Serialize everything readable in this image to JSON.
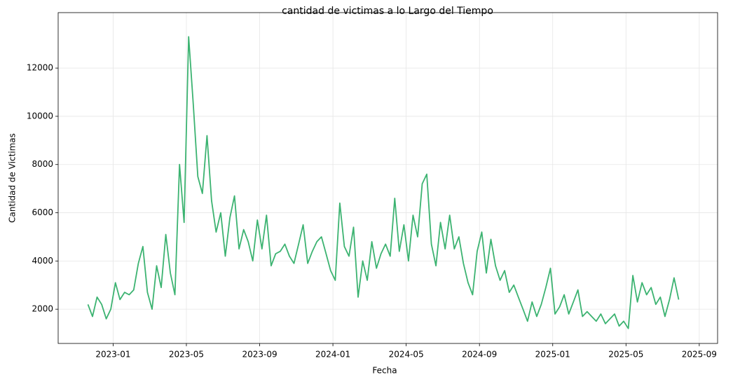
{
  "chart_data": {
    "type": "line",
    "title": "cantidad de victimas a lo Largo del Tiempo",
    "x_label": "Fecha",
    "y_label": "Cantidad de Victimas",
    "x": [
      "2022-11",
      "2022-11",
      "2022-11",
      "2022-11",
      "2022-12",
      "2022-12",
      "2022-12",
      "2022-12",
      "2023-01",
      "2023-01",
      "2023-01",
      "2023-01",
      "2023-02",
      "2023-02",
      "2023-02",
      "2023-02",
      "2023-03",
      "2023-03",
      "2023-03",
      "2023-03",
      "2023-04",
      "2023-04",
      "2023-04",
      "2023-04",
      "2023-05",
      "2023-05",
      "2023-05",
      "2023-05",
      "2023-06",
      "2023-06",
      "2023-06",
      "2023-06",
      "2023-07",
      "2023-07",
      "2023-07",
      "2023-07",
      "2023-08",
      "2023-08",
      "2023-08",
      "2023-08",
      "2023-09",
      "2023-09",
      "2023-09",
      "2023-09",
      "2023-10",
      "2023-10",
      "2023-10",
      "2023-10",
      "2023-11",
      "2023-11",
      "2023-11",
      "2023-11",
      "2023-12",
      "2023-12",
      "2023-12",
      "2023-12",
      "2024-01",
      "2024-01",
      "2024-01",
      "2024-01",
      "2024-02",
      "2024-02",
      "2024-02",
      "2024-02",
      "2024-03",
      "2024-03",
      "2024-03",
      "2024-03",
      "2024-04",
      "2024-04",
      "2024-04",
      "2024-04",
      "2024-05",
      "2024-05",
      "2024-05",
      "2024-05",
      "2024-06",
      "2024-06",
      "2024-06",
      "2024-06",
      "2024-07",
      "2024-07",
      "2024-07",
      "2024-07",
      "2024-08",
      "2024-08",
      "2024-08",
      "2024-08",
      "2024-09",
      "2024-09",
      "2024-09",
      "2024-09",
      "2024-10",
      "2024-10",
      "2024-10",
      "2024-10",
      "2024-11",
      "2024-11",
      "2024-11",
      "2024-11",
      "2024-12",
      "2024-12",
      "2024-12",
      "2024-12",
      "2025-01",
      "2025-01",
      "2025-01",
      "2025-01",
      "2025-02",
      "2025-02",
      "2025-02",
      "2025-02",
      "2025-03",
      "2025-03",
      "2025-03",
      "2025-03",
      "2025-04",
      "2025-04",
      "2025-04",
      "2025-04",
      "2025-05",
      "2025-05",
      "2025-05",
      "2025-05",
      "2025-06",
      "2025-06",
      "2025-06",
      "2025-06",
      "2025-07",
      "2025-07",
      "2025-07",
      "2025-07"
    ],
    "series": [
      {
        "name": "Cantidad de Victimas",
        "color": "#3cb371",
        "values": [
          null,
          null,
          2200,
          1700,
          2500,
          2200,
          1600,
          2000,
          3100,
          2400,
          2700,
          2600,
          2800,
          3900,
          4600,
          2700,
          2000,
          3800,
          2900,
          5100,
          3500,
          2600,
          8000,
          5600,
          13300,
          10500,
          7500,
          6800,
          9200,
          6500,
          5200,
          6000,
          4200,
          5800,
          6700,
          4500,
          5300,
          4800,
          4000,
          5700,
          4500,
          5900,
          3800,
          4300,
          4400,
          4700,
          4200,
          3900,
          4700,
          5500,
          3900,
          4400,
          4800,
          5000,
          4300,
          3600,
          3200,
          6400,
          4600,
          4200,
          5400,
          2500,
          4000,
          3200,
          4800,
          3700,
          4300,
          4700,
          4200,
          6600,
          4400,
          5500,
          4000,
          5900,
          5000,
          7200,
          7600,
          4700,
          3800,
          5600,
          4500,
          5900,
          4500,
          5000,
          3900,
          3100,
          2600,
          4400,
          5200,
          3500,
          4900,
          3800,
          3200,
          3600,
          2700,
          3000,
          2500,
          2000,
          1500,
          2300,
          1700,
          2200,
          2900,
          3700,
          1800,
          2100,
          2600,
          1800,
          2300,
          2800,
          1700,
          1900,
          1700,
          1500,
          1800,
          1400,
          1600,
          1800,
          1300,
          1500,
          1200,
          3400,
          2300,
          3100,
          2600,
          2900,
          2200,
          2500,
          1700,
          2400,
          3300,
          2400
        ]
      }
    ],
    "xlim": [
      "2022-10",
      "2025-10"
    ],
    "xticks": [
      "2023-01",
      "2023-05",
      "2023-09",
      "2024-01",
      "2024-05",
      "2024-09",
      "2025-01",
      "2025-05",
      "2025-09"
    ],
    "ylim": [
      580,
      14300
    ],
    "yticks": [
      2000,
      4000,
      6000,
      8000,
      10000,
      12000
    ],
    "grid": true
  }
}
